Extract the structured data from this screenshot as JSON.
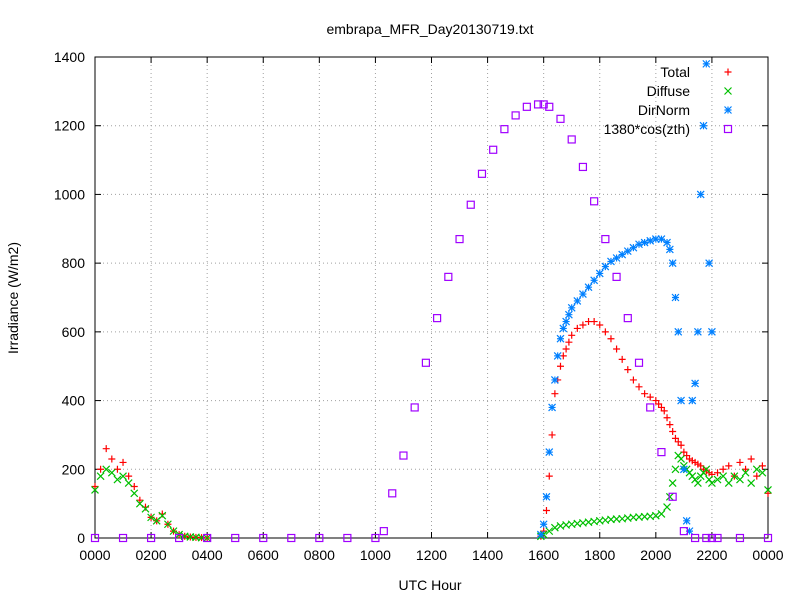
{
  "chart_data": {
    "type": "scatter",
    "title": "embrapa_MFR_Day20130719.txt",
    "xlabel": "UTC Hour",
    "ylabel": "Irradiance (W/m2)",
    "xlim": [
      0,
      24
    ],
    "ylim": [
      0,
      1400
    ],
    "grid": true,
    "legend_position": "top-right",
    "x_ticks": [
      {
        "value": 0,
        "label": "0000"
      },
      {
        "value": 2,
        "label": "0200"
      },
      {
        "value": 4,
        "label": "0400"
      },
      {
        "value": 6,
        "label": "0600"
      },
      {
        "value": 8,
        "label": "0800"
      },
      {
        "value": 10,
        "label": "1000"
      },
      {
        "value": 12,
        "label": "1200"
      },
      {
        "value": 14,
        "label": "1400"
      },
      {
        "value": 16,
        "label": "1600"
      },
      {
        "value": 18,
        "label": "1800"
      },
      {
        "value": 20,
        "label": "2000"
      },
      {
        "value": 22,
        "label": "2200"
      },
      {
        "value": 24,
        "label": "0000"
      }
    ],
    "y_ticks": [
      {
        "value": 0,
        "label": "0"
      },
      {
        "value": 200,
        "label": "200"
      },
      {
        "value": 400,
        "label": "400"
      },
      {
        "value": 600,
        "label": "600"
      },
      {
        "value": 800,
        "label": "800"
      },
      {
        "value": 1000,
        "label": "1000"
      },
      {
        "value": 1200,
        "label": "1200"
      },
      {
        "value": 1400,
        "label": "1400"
      }
    ],
    "series": [
      {
        "name": "Total",
        "marker": "plus",
        "color": "#ff0000",
        "x": [
          0.0,
          0.2,
          0.4,
          0.6,
          0.8,
          1.0,
          1.2,
          1.4,
          1.6,
          1.8,
          2.0,
          2.2,
          2.4,
          2.6,
          2.8,
          3.0,
          3.2,
          3.4,
          3.6,
          3.8,
          4.0,
          15.9,
          16.0,
          16.1,
          16.2,
          16.3,
          16.4,
          16.5,
          16.6,
          16.7,
          16.8,
          16.9,
          17.0,
          17.2,
          17.4,
          17.6,
          17.8,
          18.0,
          18.2,
          18.4,
          18.6,
          18.8,
          19.0,
          19.2,
          19.4,
          19.6,
          19.8,
          20.0,
          20.1,
          20.2,
          20.3,
          20.4,
          20.5,
          20.6,
          20.7,
          20.8,
          20.9,
          21.0,
          21.1,
          21.2,
          21.3,
          21.4,
          21.5,
          21.6,
          21.7,
          21.8,
          21.9,
          22.0,
          22.2,
          22.4,
          22.6,
          22.8,
          23.0,
          23.2,
          23.4,
          23.6,
          23.8,
          24.0
        ],
        "y": [
          150,
          200,
          260,
          230,
          200,
          220,
          180,
          150,
          110,
          90,
          60,
          50,
          70,
          40,
          20,
          10,
          5,
          3,
          2,
          1,
          0,
          5,
          20,
          80,
          180,
          300,
          420,
          460,
          500,
          530,
          550,
          570,
          590,
          610,
          620,
          630,
          630,
          620,
          600,
          580,
          550,
          520,
          490,
          460,
          440,
          420,
          410,
          400,
          390,
          380,
          370,
          350,
          330,
          310,
          290,
          280,
          270,
          250,
          240,
          230,
          225,
          220,
          215,
          210,
          200,
          195,
          190,
          185,
          190,
          200,
          210,
          180,
          220,
          200,
          230,
          180,
          210,
          130
        ]
      },
      {
        "name": "Diffuse",
        "marker": "cross",
        "color": "#00c000",
        "x": [
          0.0,
          0.2,
          0.4,
          0.6,
          0.8,
          1.0,
          1.2,
          1.4,
          1.6,
          1.8,
          2.0,
          2.2,
          2.4,
          2.6,
          2.8,
          3.0,
          3.2,
          3.4,
          3.6,
          3.8,
          4.0,
          15.9,
          16.0,
          16.2,
          16.4,
          16.6,
          16.8,
          17.0,
          17.2,
          17.4,
          17.6,
          17.8,
          18.0,
          18.2,
          18.4,
          18.6,
          18.8,
          19.0,
          19.2,
          19.4,
          19.6,
          19.8,
          20.0,
          20.2,
          20.4,
          20.5,
          20.6,
          20.7,
          20.8,
          20.9,
          21.0,
          21.1,
          21.2,
          21.3,
          21.4,
          21.5,
          21.6,
          21.7,
          21.8,
          21.9,
          22.0,
          22.2,
          22.4,
          22.6,
          22.8,
          23.0,
          23.2,
          23.4,
          23.6,
          23.8,
          24.0
        ],
        "y": [
          140,
          180,
          200,
          190,
          170,
          180,
          160,
          130,
          100,
          85,
          60,
          50,
          65,
          40,
          20,
          10,
          5,
          3,
          2,
          1,
          0,
          5,
          10,
          20,
          30,
          35,
          38,
          40,
          42,
          44,
          46,
          48,
          50,
          52,
          54,
          55,
          56,
          58,
          60,
          61,
          62,
          63,
          65,
          70,
          90,
          120,
          160,
          200,
          240,
          230,
          210,
          200,
          190,
          180,
          170,
          160,
          180,
          190,
          200,
          170,
          160,
          170,
          180,
          160,
          180,
          170,
          190,
          160,
          200,
          190,
          140
        ]
      },
      {
        "name": "DirNorm",
        "marker": "star",
        "color": "#0080ff",
        "x": [
          15.9,
          16.0,
          16.1,
          16.2,
          16.3,
          16.4,
          16.5,
          16.6,
          16.7,
          16.8,
          16.9,
          17.0,
          17.2,
          17.4,
          17.6,
          17.8,
          18.0,
          18.2,
          18.4,
          18.6,
          18.8,
          19.0,
          19.2,
          19.4,
          19.6,
          19.8,
          20.0,
          20.2,
          20.4,
          20.5,
          20.6,
          20.7,
          20.8,
          20.9,
          21.0,
          21.1,
          21.2,
          21.3,
          21.4,
          21.5,
          21.6,
          21.7,
          21.8,
          21.9,
          22.0
        ],
        "y": [
          10,
          40,
          120,
          250,
          380,
          460,
          530,
          580,
          610,
          630,
          650,
          670,
          690,
          710,
          730,
          750,
          770,
          790,
          805,
          815,
          825,
          835,
          845,
          855,
          860,
          865,
          870,
          870,
          860,
          840,
          800,
          700,
          600,
          400,
          200,
          50,
          20,
          400,
          450,
          600,
          1000,
          1200,
          1380,
          800,
          600
        ]
      },
      {
        "name": "1380*cos(zth)",
        "marker": "square",
        "color": "#a000ff",
        "x": [
          0.0,
          1.0,
          2.0,
          3.0,
          4.0,
          5.0,
          6.0,
          7.0,
          8.0,
          9.0,
          10.0,
          10.3,
          10.6,
          11.0,
          11.4,
          11.8,
          12.2,
          12.6,
          13.0,
          13.4,
          13.8,
          14.2,
          14.6,
          15.0,
          15.4,
          15.8,
          16.0,
          16.2,
          16.6,
          17.0,
          17.4,
          17.8,
          18.2,
          18.6,
          19.0,
          19.4,
          19.8,
          20.2,
          20.6,
          21.0,
          21.4,
          21.8,
          22.0,
          22.2,
          23.0,
          24.0
        ],
        "y": [
          0,
          0,
          0,
          0,
          0,
          0,
          0,
          0,
          0,
          0,
          0,
          20,
          130,
          240,
          380,
          510,
          640,
          760,
          870,
          970,
          1060,
          1130,
          1190,
          1230,
          1255,
          1262,
          1262,
          1255,
          1220,
          1160,
          1080,
          980,
          870,
          760,
          640,
          510,
          380,
          250,
          120,
          20,
          0,
          0,
          0,
          0,
          0,
          0
        ]
      }
    ]
  }
}
